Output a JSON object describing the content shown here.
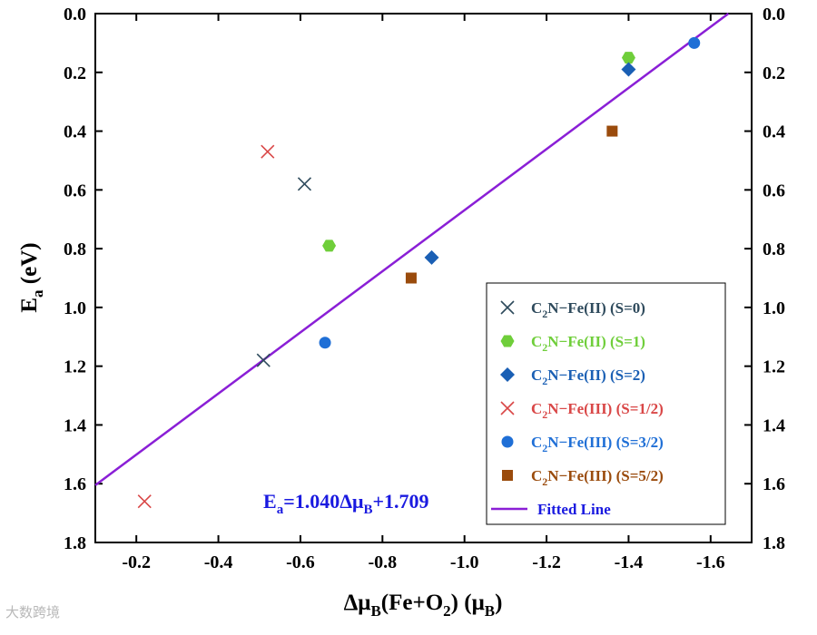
{
  "chart_data": {
    "type": "scatter",
    "xlabel_parts": {
      "delta_mu": "Δμ",
      "sub_B": "B",
      "fe_o": "(Fe+O",
      "sub_2": "2",
      "close": ")",
      "unit_open": " (μ",
      "unit_sub": "B",
      "unit_close": ")"
    },
    "ylabel_parts": {
      "e": "E",
      "sub_a": "a",
      "unit": " (eV)"
    },
    "xlim": [
      -0.1,
      -1.7
    ],
    "ylim": [
      0.0,
      1.8
    ],
    "x_reversed": true,
    "y_reversed": true,
    "x_ticks": [
      -0.2,
      -0.4,
      -0.6,
      -0.8,
      -1.0,
      -1.2,
      -1.4,
      -1.6
    ],
    "x_tick_labels": [
      "-0.2",
      "-0.4",
      "-0.6",
      "-0.8",
      "-1.0",
      "-1.2",
      "-1.4",
      "-1.6"
    ],
    "y_ticks": [
      0.0,
      0.2,
      0.4,
      0.6,
      0.8,
      1.0,
      1.2,
      1.4,
      1.6,
      1.8
    ],
    "y_tick_labels": [
      "0.0",
      "0.2",
      "0.4",
      "0.6",
      "0.8",
      "1.0",
      "1.2",
      "1.4",
      "1.6",
      "1.8"
    ],
    "series": [
      {
        "key": "fe2-s0",
        "name_parts": [
          "C",
          "2",
          "N−Fe(II) (S=0)"
        ],
        "marker": "x",
        "color": "#2e4a5c",
        "points": [
          {
            "x": -0.61,
            "y": 0.58
          },
          {
            "x": -0.51,
            "y": 1.18
          }
        ]
      },
      {
        "key": "fe2-s1",
        "name_parts": [
          "C",
          "2",
          "N−Fe(II) (S=1)"
        ],
        "marker": "hexagon",
        "color": "#6fce3a",
        "points": [
          {
            "x": -0.67,
            "y": 0.79
          },
          {
            "x": -1.4,
            "y": 0.15
          }
        ]
      },
      {
        "key": "fe2-s2",
        "name_parts": [
          "C",
          "2",
          "N−Fe(II) (S=2)"
        ],
        "marker": "diamond",
        "color": "#1a5fb4",
        "points": [
          {
            "x": -0.92,
            "y": 0.83
          },
          {
            "x": -1.4,
            "y": 0.19
          }
        ]
      },
      {
        "key": "fe3-s1-2",
        "name_parts": [
          "C",
          "2",
          "N−Fe(III) (S=1/2)"
        ],
        "marker": "x",
        "color": "#d94747",
        "points": [
          {
            "x": -0.52,
            "y": 0.47
          },
          {
            "x": -0.22,
            "y": 1.66
          }
        ]
      },
      {
        "key": "fe3-s3-2",
        "name_parts": [
          "C",
          "2",
          "N−Fe(III) (S=3/2)"
        ],
        "marker": "circle",
        "color": "#1f6fd6",
        "points": [
          {
            "x": -0.66,
            "y": 1.12
          },
          {
            "x": -1.56,
            "y": 0.1
          }
        ]
      },
      {
        "key": "fe3-s5-2",
        "name_parts": [
          "C",
          "2",
          "N−Fe(III) (S=5/2)"
        ],
        "marker": "square",
        "color": "#9a4b0c",
        "points": [
          {
            "x": -0.87,
            "y": 0.9
          },
          {
            "x": -1.36,
            "y": 0.4
          }
        ]
      }
    ],
    "fit": {
      "label": "Fitted Line",
      "color": "#8a1fd6",
      "slope": 1.04,
      "intercept": 1.709,
      "equation_parts": {
        "e": "E",
        "sub_a": "a",
        "mid": "=1.040Δμ",
        "sub_B": "B",
        "tail": "+1.709"
      },
      "equation_color": "#1a1ae0"
    },
    "legend_position": "bottom-right"
  },
  "watermark": "大数跨境"
}
